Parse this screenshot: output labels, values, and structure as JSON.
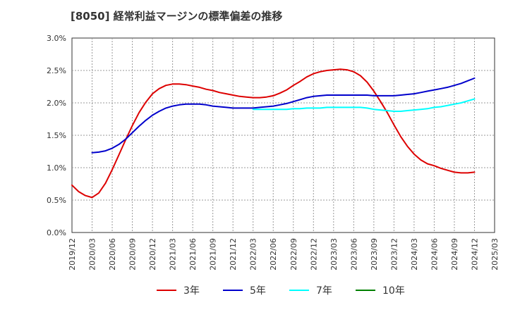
{
  "chart_data": {
    "type": "line",
    "title": "[8050]  経常利益マージンの標準偏差の推移",
    "xlabel": "",
    "ylabel": "",
    "ylim": [
      0,
      3.0
    ],
    "y_tick_labels": [
      "0.0%",
      "0.5%",
      "1.0%",
      "1.5%",
      "2.0%",
      "2.5%",
      "3.0%"
    ],
    "x_tick_labels": [
      "2019/12",
      "2020/03",
      "2020/06",
      "2020/09",
      "2020/12",
      "2021/03",
      "2021/06",
      "2021/09",
      "2021/12",
      "2022/03",
      "2022/06",
      "2022/09",
      "2022/12",
      "2023/03",
      "2023/06",
      "2023/09",
      "2023/12",
      "2024/03",
      "2024/06",
      "2024/09",
      "2024/12",
      "2025/03"
    ],
    "grid": true,
    "legend_position": "bottom",
    "series": [
      {
        "name": "3年",
        "color": "#dd0000",
        "x": [
          "2019/12",
          "2020/01",
          "2020/02",
          "2020/03",
          "2020/04",
          "2020/05",
          "2020/06",
          "2020/07",
          "2020/08",
          "2020/09",
          "2020/10",
          "2020/11",
          "2020/12",
          "2021/01",
          "2021/02",
          "2021/03",
          "2021/04",
          "2021/05",
          "2021/06",
          "2021/07",
          "2021/08",
          "2021/09",
          "2021/10",
          "2021/11",
          "2021/12",
          "2022/01",
          "2022/02",
          "2022/03",
          "2022/04",
          "2022/05",
          "2022/06",
          "2022/07",
          "2022/08",
          "2022/09",
          "2022/10",
          "2022/11",
          "2022/12",
          "2023/01",
          "2023/02",
          "2023/03",
          "2023/04",
          "2023/05",
          "2023/06",
          "2023/07",
          "2023/08",
          "2023/09",
          "2023/10",
          "2023/11",
          "2023/12",
          "2024/01",
          "2024/02",
          "2024/03",
          "2024/04",
          "2024/05",
          "2024/06",
          "2024/07",
          "2024/08",
          "2024/09",
          "2024/10",
          "2024/11",
          "2024/12"
        ],
        "values": [
          0.73,
          0.63,
          0.57,
          0.54,
          0.61,
          0.76,
          0.97,
          1.2,
          1.43,
          1.65,
          1.85,
          2.01,
          2.14,
          2.22,
          2.27,
          2.29,
          2.29,
          2.28,
          2.26,
          2.24,
          2.21,
          2.19,
          2.16,
          2.14,
          2.12,
          2.1,
          2.09,
          2.08,
          2.08,
          2.09,
          2.11,
          2.15,
          2.2,
          2.27,
          2.33,
          2.4,
          2.45,
          2.48,
          2.5,
          2.51,
          2.52,
          2.51,
          2.48,
          2.42,
          2.32,
          2.18,
          2.02,
          1.85,
          1.66,
          1.48,
          1.33,
          1.21,
          1.12,
          1.06,
          1.03,
          0.99,
          0.96,
          0.93,
          0.92,
          0.92,
          0.93
        ]
      },
      {
        "name": "5年",
        "color": "#0000cc",
        "x": [
          "2020/03",
          "2020/04",
          "2020/05",
          "2020/06",
          "2020/07",
          "2020/08",
          "2020/09",
          "2020/10",
          "2020/11",
          "2020/12",
          "2021/01",
          "2021/02",
          "2021/03",
          "2021/04",
          "2021/05",
          "2021/06",
          "2021/07",
          "2021/08",
          "2021/09",
          "2021/10",
          "2021/11",
          "2021/12",
          "2022/01",
          "2022/02",
          "2022/03",
          "2022/04",
          "2022/05",
          "2022/06",
          "2022/07",
          "2022/08",
          "2022/09",
          "2022/10",
          "2022/11",
          "2022/12",
          "2023/01",
          "2023/02",
          "2023/03",
          "2023/04",
          "2023/05",
          "2023/06",
          "2023/07",
          "2023/08",
          "2023/09",
          "2023/10",
          "2023/11",
          "2023/12",
          "2024/01",
          "2024/02",
          "2024/03",
          "2024/04",
          "2024/05",
          "2024/06",
          "2024/07",
          "2024/08",
          "2024/09",
          "2024/10",
          "2024/11",
          "2024/12"
        ],
        "values": [
          1.23,
          1.24,
          1.26,
          1.3,
          1.36,
          1.44,
          1.54,
          1.64,
          1.73,
          1.81,
          1.87,
          1.92,
          1.95,
          1.97,
          1.98,
          1.98,
          1.98,
          1.97,
          1.95,
          1.94,
          1.93,
          1.92,
          1.92,
          1.92,
          1.92,
          1.93,
          1.94,
          1.95,
          1.97,
          1.99,
          2.02,
          2.05,
          2.08,
          2.1,
          2.11,
          2.12,
          2.12,
          2.12,
          2.12,
          2.12,
          2.12,
          2.12,
          2.11,
          2.11,
          2.11,
          2.11,
          2.12,
          2.13,
          2.14,
          2.16,
          2.18,
          2.2,
          2.22,
          2.24,
          2.27,
          2.3,
          2.34,
          2.38
        ]
      },
      {
        "name": "7年",
        "color": "#00ffff",
        "x": [
          "2022/03",
          "2022/04",
          "2022/05",
          "2022/06",
          "2022/07",
          "2022/08",
          "2022/09",
          "2022/10",
          "2022/11",
          "2022/12",
          "2023/01",
          "2023/02",
          "2023/03",
          "2023/04",
          "2023/05",
          "2023/06",
          "2023/07",
          "2023/08",
          "2023/09",
          "2023/10",
          "2023/11",
          "2023/12",
          "2024/01",
          "2024/02",
          "2024/03",
          "2024/04",
          "2024/05",
          "2024/06",
          "2024/07",
          "2024/08",
          "2024/09",
          "2024/10",
          "2024/11",
          "2024/12"
        ],
        "values": [
          1.9,
          1.9,
          1.9,
          1.9,
          1.9,
          1.9,
          1.91,
          1.91,
          1.92,
          1.92,
          1.92,
          1.93,
          1.93,
          1.93,
          1.93,
          1.93,
          1.93,
          1.92,
          1.9,
          1.89,
          1.88,
          1.87,
          1.87,
          1.88,
          1.89,
          1.9,
          1.91,
          1.93,
          1.94,
          1.96,
          1.98,
          2.0,
          2.03,
          2.06
        ]
      },
      {
        "name": "10年",
        "color": "#008000",
        "x": [],
        "values": []
      }
    ]
  }
}
